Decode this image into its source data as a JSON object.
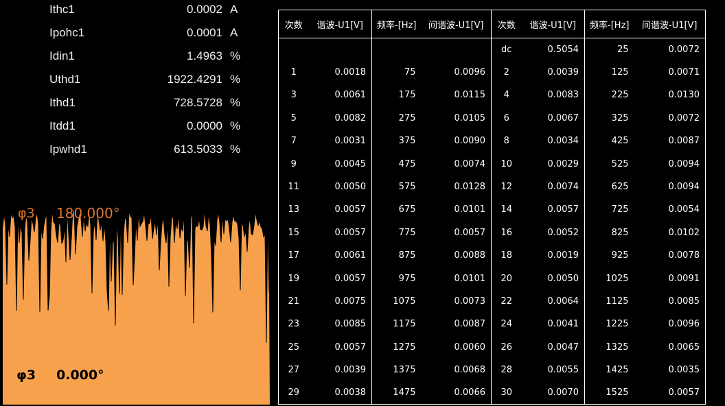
{
  "measurements": [
    {
      "name": "Ithc1",
      "value": "0.0002",
      "unit": "A"
    },
    {
      "name": "Ipohc1",
      "value": "0.0001",
      "unit": "A"
    },
    {
      "name": "Idin1",
      "value": "1.4963",
      "unit": "%"
    },
    {
      "name": "Uthd1",
      "value": "1922.4291",
      "unit": "%"
    },
    {
      "name": "Ithd1",
      "value": "728.5728",
      "unit": "%"
    },
    {
      "name": "Itdd1",
      "value": "0.0000",
      "unit": "%"
    },
    {
      "name": "Ipwhd1",
      "value": "613.5033",
      "unit": "%"
    }
  ],
  "phase": {
    "top_label": "φ3",
    "top_value": "180.000°",
    "bottom_label": "φ3",
    "bottom_value": "0.000°",
    "fill_color": "#f7a14d",
    "line_color": "#000000"
  },
  "table": {
    "headers": [
      "次数",
      "谐波-U1[V]",
      "频率-[Hz]",
      "间谐波-U1[V]",
      "次数",
      "谐波-U1[V]",
      "频率-[Hz]",
      "间谐波-U1[V]"
    ],
    "rows": [
      [
        "",
        "",
        "",
        "",
        "dc",
        "0.5054",
        "25",
        "0.0072"
      ],
      [
        "1",
        "0.0018",
        "75",
        "0.0096",
        "2",
        "0.0039",
        "125",
        "0.0071"
      ],
      [
        "3",
        "0.0061",
        "175",
        "0.0115",
        "4",
        "0.0083",
        "225",
        "0.0130"
      ],
      [
        "5",
        "0.0082",
        "275",
        "0.0105",
        "6",
        "0.0067",
        "325",
        "0.0072"
      ],
      [
        "7",
        "0.0031",
        "375",
        "0.0090",
        "8",
        "0.0034",
        "425",
        "0.0087"
      ],
      [
        "9",
        "0.0045",
        "475",
        "0.0074",
        "10",
        "0.0029",
        "525",
        "0.0094"
      ],
      [
        "11",
        "0.0050",
        "575",
        "0.0128",
        "12",
        "0.0074",
        "625",
        "0.0094"
      ],
      [
        "13",
        "0.0057",
        "675",
        "0.0101",
        "14",
        "0.0057",
        "725",
        "0.0054"
      ],
      [
        "15",
        "0.0057",
        "775",
        "0.0057",
        "16",
        "0.0052",
        "825",
        "0.0102"
      ],
      [
        "17",
        "0.0061",
        "875",
        "0.0088",
        "18",
        "0.0019",
        "925",
        "0.0078"
      ],
      [
        "19",
        "0.0057",
        "975",
        "0.0101",
        "20",
        "0.0050",
        "1025",
        "0.0091"
      ],
      [
        "21",
        "0.0075",
        "1075",
        "0.0073",
        "22",
        "0.0064",
        "1125",
        "0.0085"
      ],
      [
        "23",
        "0.0085",
        "1175",
        "0.0087",
        "24",
        "0.0041",
        "1225",
        "0.0096"
      ],
      [
        "25",
        "0.0057",
        "1275",
        "0.0060",
        "26",
        "0.0047",
        "1325",
        "0.0065"
      ],
      [
        "27",
        "0.0039",
        "1375",
        "0.0068",
        "28",
        "0.0055",
        "1425",
        "0.0035"
      ],
      [
        "29",
        "0.0038",
        "1475",
        "0.0066",
        "30",
        "0.0070",
        "1525",
        "0.0057"
      ]
    ]
  }
}
